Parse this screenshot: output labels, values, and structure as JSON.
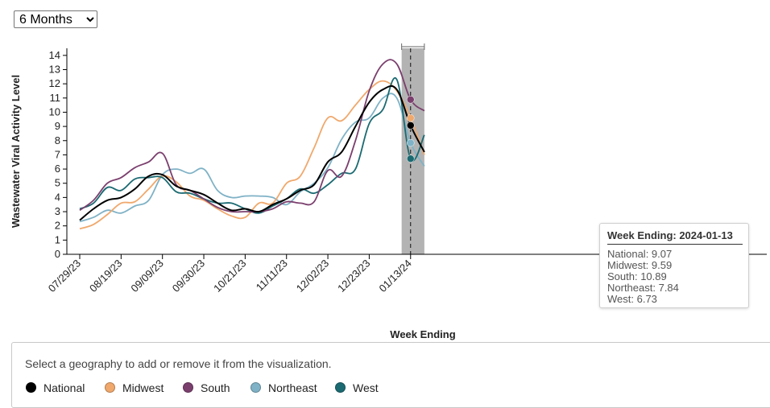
{
  "range_select": {
    "value": "6 Months",
    "options": [
      "6 Months"
    ]
  },
  "tooltip": {
    "title": "Week Ending: 2024-01-13",
    "rows": [
      "National: 9.07",
      "Midwest: 9.59",
      "South: 10.89",
      "Northeast: 7.84",
      "West: 6.73"
    ]
  },
  "legend": {
    "instructions": "Select a geography to add or remove it from the visualization.",
    "items": [
      "National",
      "Midwest",
      "South",
      "Northeast",
      "West"
    ]
  },
  "chart_data": {
    "type": "line",
    "title": "",
    "xlabel": "Week Ending",
    "ylabel": "Wastewater Viral Activity Level",
    "ylim": [
      0,
      14.5
    ],
    "yticks": [
      "0",
      "1",
      "2",
      "3",
      "4",
      "5",
      "6",
      "7",
      "8",
      "9",
      "10",
      "11",
      "12",
      "13",
      "14"
    ],
    "x_tick_labels": [
      "07/29/23",
      "08/19/23",
      "09/09/23",
      "09/30/23",
      "10/21/23",
      "11/11/23",
      "12/02/23",
      "12/23/23",
      "01/13/24"
    ],
    "x": [
      "07/29/23",
      "08/05/23",
      "08/12/23",
      "08/19/23",
      "08/26/23",
      "09/02/23",
      "09/09/23",
      "09/16/23",
      "09/23/23",
      "09/30/23",
      "10/07/23",
      "10/14/23",
      "10/21/23",
      "10/28/23",
      "11/04/23",
      "11/11/23",
      "11/18/23",
      "11/25/23",
      "12/02/23",
      "12/09/23",
      "12/16/23",
      "12/23/23",
      "12/30/23",
      "01/06/24",
      "01/13/24",
      "01/20/24"
    ],
    "highlight": {
      "x": "01/13/24",
      "shaded_from": "01/06/24",
      "shaded_to": "01/20/24"
    },
    "grid": false,
    "legend_position": "bottom",
    "series": [
      {
        "name": "National",
        "color": "#000000",
        "values": [
          2.4,
          3.2,
          3.8,
          4.0,
          4.6,
          5.5,
          5.6,
          4.8,
          4.5,
          4.2,
          3.6,
          3.1,
          3.2,
          3.0,
          3.5,
          3.9,
          4.5,
          4.9,
          6.5,
          7.2,
          9.0,
          10.7,
          11.6,
          11.6,
          9.07,
          7.2
        ]
      },
      {
        "name": "Midwest",
        "color": "#f0a86c",
        "values": [
          1.8,
          2.1,
          2.8,
          3.6,
          3.7,
          4.6,
          5.5,
          5.1,
          4.1,
          3.8,
          3.2,
          2.7,
          2.6,
          3.6,
          3.6,
          5.0,
          5.5,
          7.5,
          9.6,
          9.4,
          10.5,
          11.6,
          12.2,
          11.5,
          9.59,
          7.0
        ]
      },
      {
        "name": "South",
        "color": "#7b3f6e",
        "values": [
          3.1,
          3.8,
          5.0,
          5.4,
          6.1,
          6.5,
          7.1,
          4.9,
          4.5,
          3.9,
          3.3,
          3.0,
          3.0,
          3.0,
          3.2,
          3.7,
          3.6,
          3.7,
          5.9,
          5.5,
          8.0,
          11.5,
          13.4,
          13.4,
          10.89,
          10.1
        ]
      },
      {
        "name": "Northeast",
        "color": "#7fb2c6",
        "values": [
          2.3,
          2.6,
          3.1,
          2.9,
          3.4,
          3.8,
          5.6,
          6.0,
          5.7,
          6.0,
          4.5,
          4.0,
          4.1,
          4.1,
          4.0,
          3.5,
          4.4,
          5.0,
          6.1,
          8.1,
          9.3,
          9.6,
          11.0,
          11.0,
          7.84,
          6.2
        ]
      },
      {
        "name": "West",
        "color": "#1b6a72",
        "values": [
          3.2,
          3.6,
          4.7,
          4.5,
          5.3,
          5.4,
          5.4,
          4.4,
          4.3,
          3.9,
          3.6,
          3.6,
          3.2,
          2.9,
          3.4,
          3.9,
          4.6,
          4.3,
          4.9,
          5.7,
          6.0,
          9.2,
          10.2,
          12.3,
          6.73,
          8.4
        ]
      }
    ]
  }
}
